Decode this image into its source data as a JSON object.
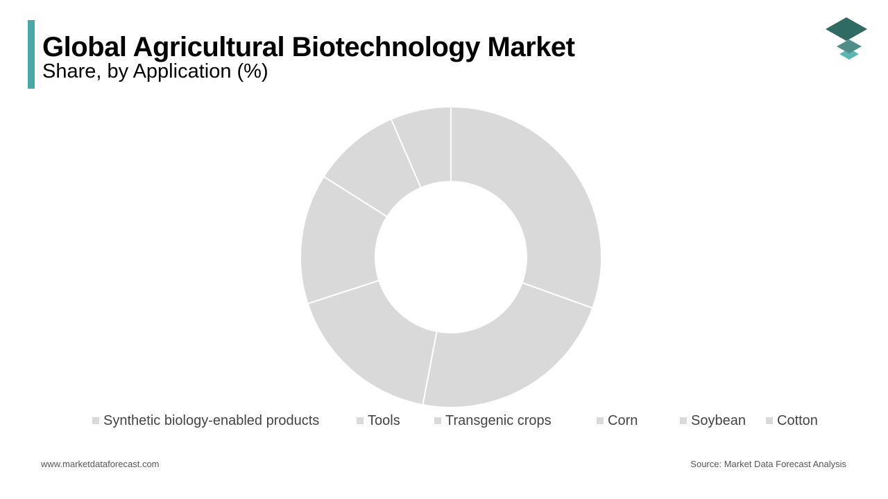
{
  "header": {
    "title": "Global Agricultural Biotechnology Market",
    "subtitle": "Share, by Application (%)"
  },
  "colors": {
    "accent": "#4aa8a8",
    "slice_fill": "#d9d9d9",
    "slice_stroke": "#ffffff",
    "logo_dark": "#2f6a63",
    "logo_mid": "#4e8e87",
    "logo_light": "#5ab8b2"
  },
  "logo": {
    "icon": "stacked-layers-icon"
  },
  "chart_data": {
    "type": "pie",
    "donut": true,
    "title": "Share, by Application (%)",
    "categories": [
      "Synthetic biology-enabled products",
      "Tools",
      "Transgenic crops",
      "Corn",
      "Soybean",
      "Cotton"
    ],
    "values": [
      30.5,
      22.5,
      17.0,
      14.0,
      9.5,
      6.5
    ],
    "legend_position": "bottom"
  },
  "legend": {
    "items": [
      "Synthetic biology-enabled products",
      "Tools",
      "Transgenic crops",
      "Corn",
      "Soybean",
      "Cotton"
    ]
  },
  "footer": {
    "website": "www.marketdataforecast.com",
    "source": "Source: Market Data Forecast Analysis"
  }
}
